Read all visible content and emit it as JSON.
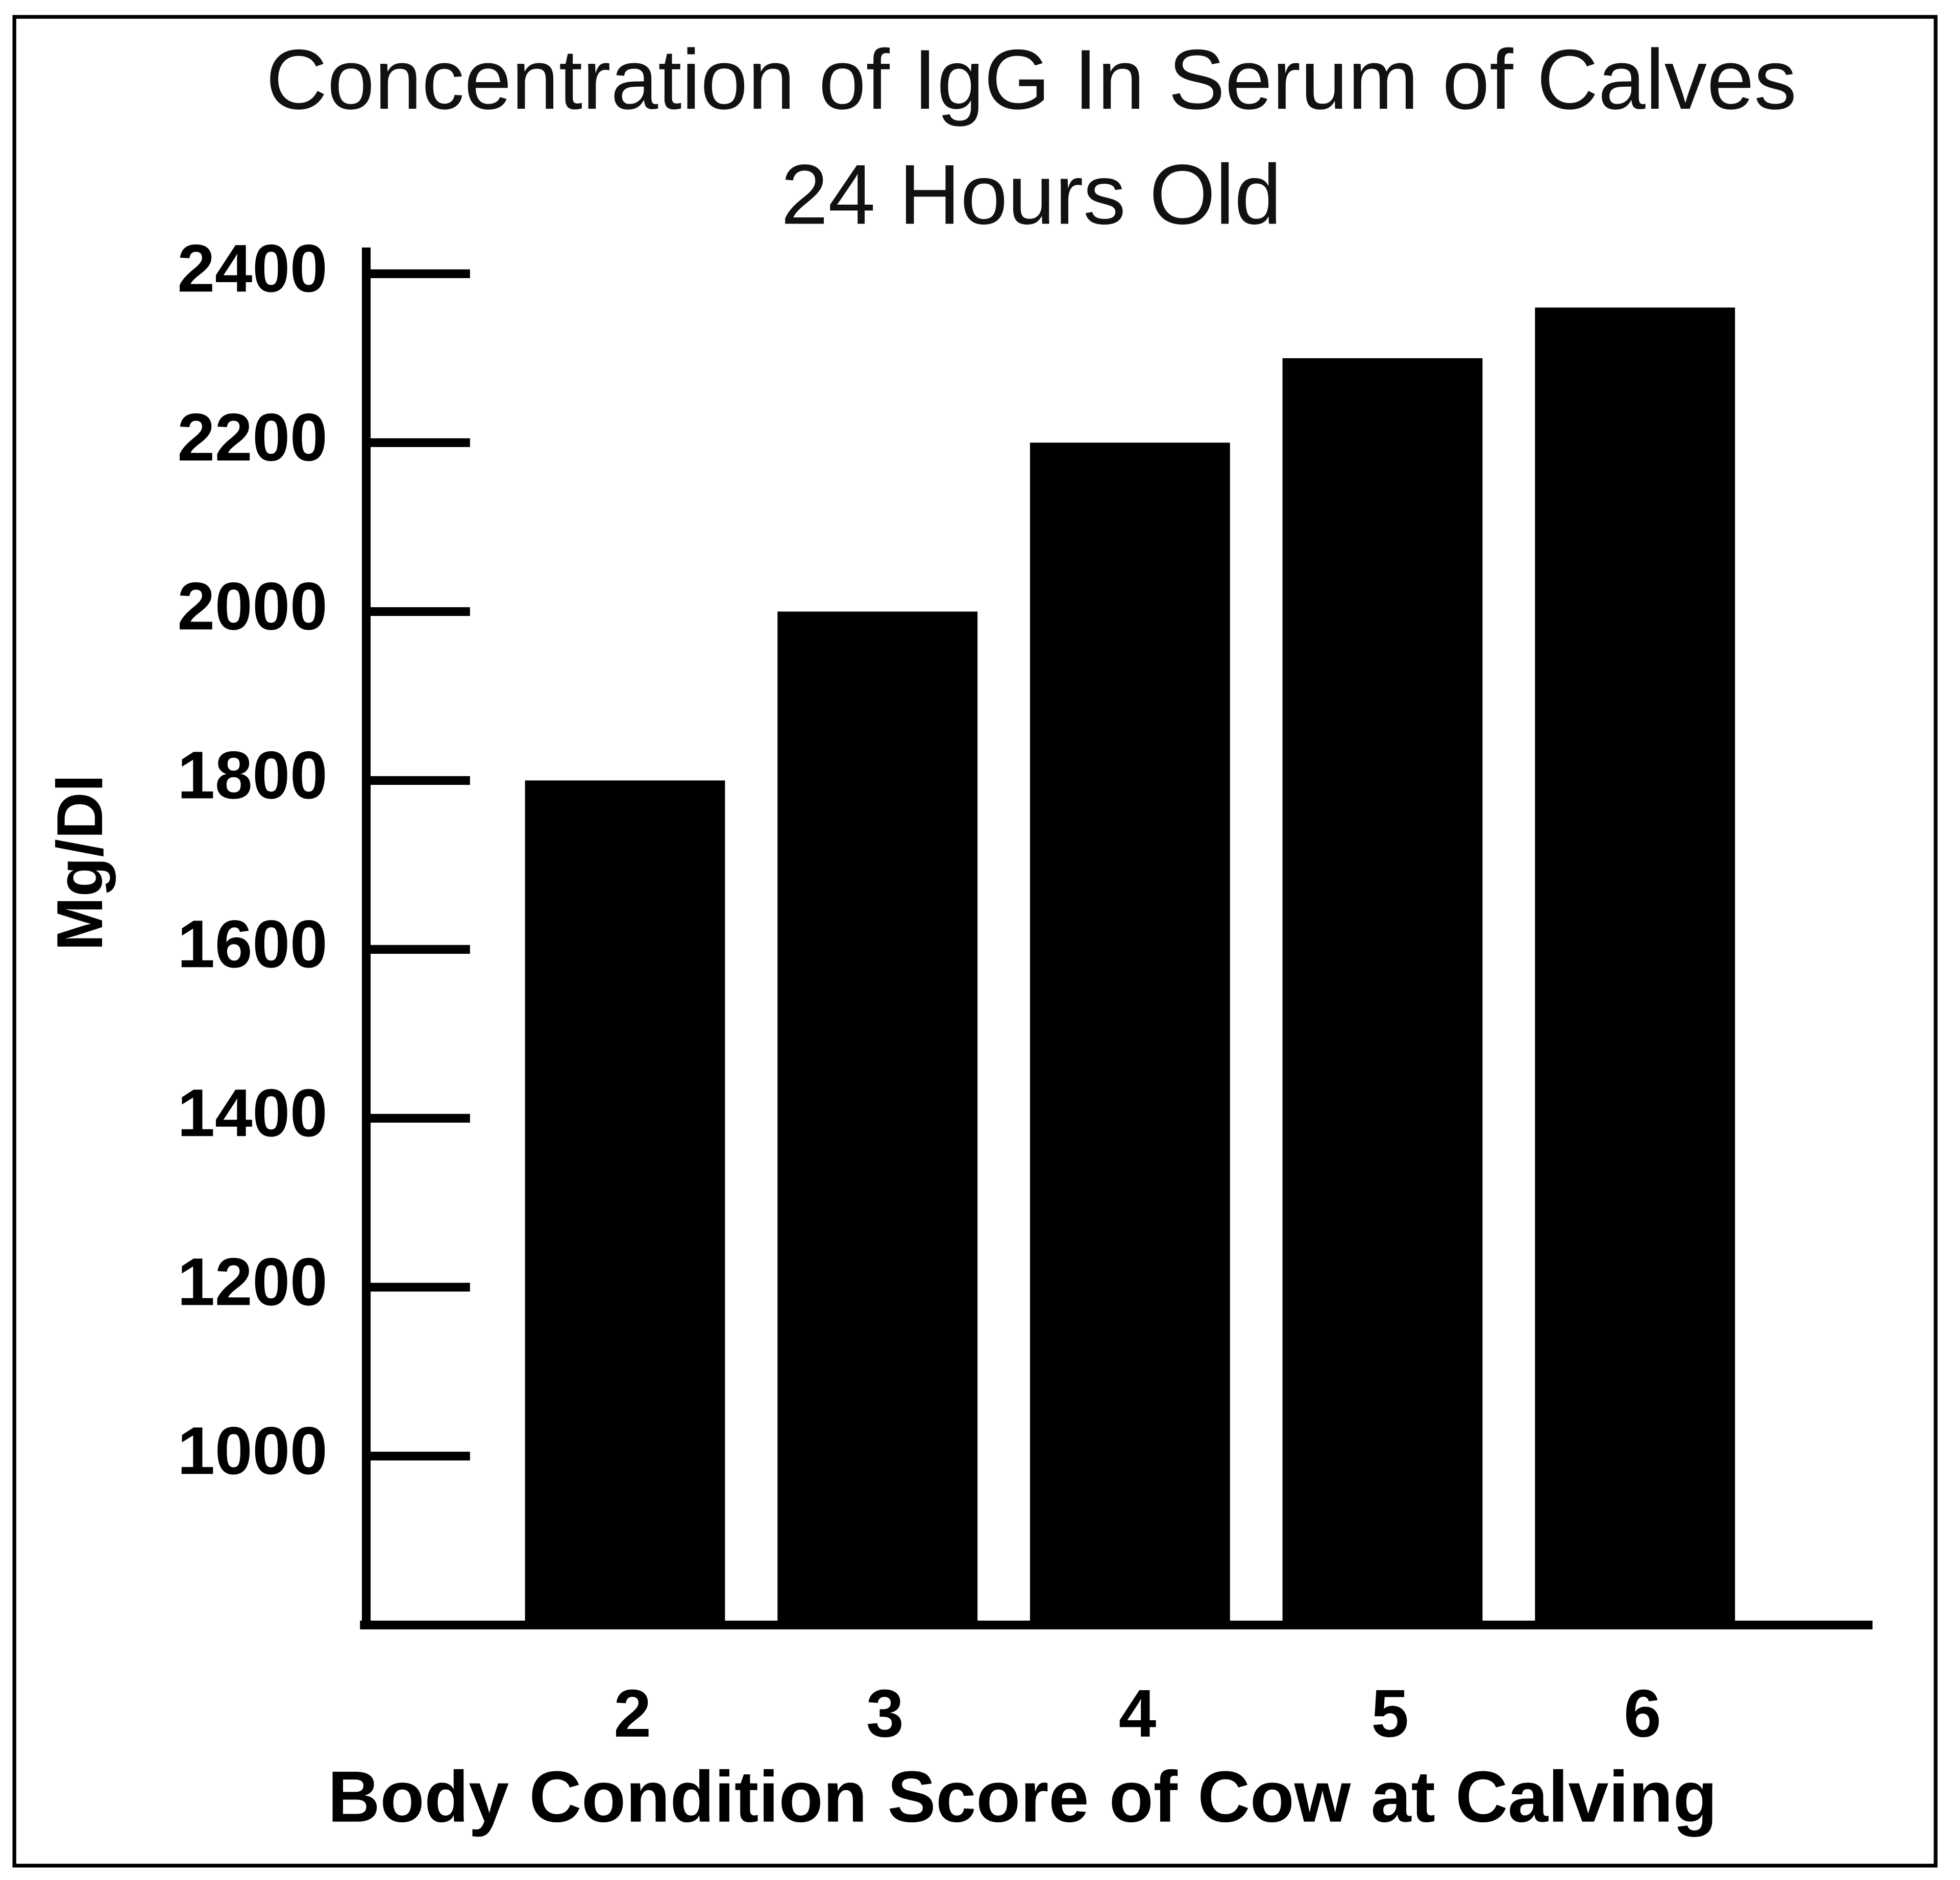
{
  "chart_data": {
    "type": "bar",
    "title": "Concentration of IgG In Serum of Calves 24 Hours Old",
    "x_label": "Body Condition Score of Cow at Calving",
    "y_label": "Mg/Dl",
    "categories": [
      "2",
      "3",
      "4",
      "5",
      "6"
    ],
    "values": [
      1800,
      2000,
      2200,
      2300,
      2360
    ],
    "color": "#000000",
    "ylim": [
      800,
      2400
    ],
    "yticks": [
      1000,
      1200,
      1400,
      1600,
      1800,
      2000,
      2200,
      2400
    ],
    "grid": false
  }
}
